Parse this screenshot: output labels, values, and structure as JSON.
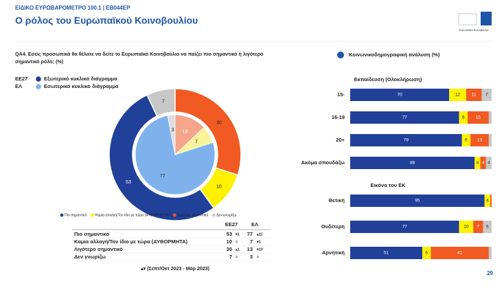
{
  "header": {
    "kicker": "ΕΙΔΙΚΟ ΕΥΡΩΒΑΡΟΜΕΤΡΟ 100.1 | EB044EP",
    "title": "Ο ρόλος του Ευρωπαϊκού Κοινοβουλίου",
    "logo_text": "Ευρωπαϊκό Κοινοβούλιο",
    "page_number": "29"
  },
  "chart_data": [
    {
      "type": "pie",
      "title": "QA4. Εσείς προσωπικά θα θέλατε να δείτε το Ευρωπαϊκό Κοινοβούλιο να παίζει πιο σημαντικό ή λιγότερο σημαντικό ρόλο; (%)",
      "categories": [
        "Πιο σημαντικό",
        "Καμία αλλαγή/Τον ίδιο με τώρα (ΑΥΘΟΡΜΗΤΑ)",
        "Λιγότερο σημαντικό",
        "Δεν γνωρίζω"
      ],
      "series": [
        {
          "name": "ΕΕ27",
          "description": "Εξωτερικό κυκλικό διάγραμμα",
          "values": [
            53,
            10,
            30,
            7
          ],
          "colors": [
            "#21409a",
            "#fff200",
            "#f15a22",
            "#c8c8c8"
          ]
        },
        {
          "name": "ΕΛ",
          "description": "Εσωτερικό κυκλικό διάγραμμα",
          "values": [
            77,
            7,
            13,
            3
          ],
          "colors": [
            "#7fb2ec",
            "#fbf39a",
            "#f5a58a",
            "#dedede"
          ]
        }
      ]
    },
    {
      "type": "bar",
      "orientation": "horizontal",
      "stacked": true,
      "title": "Κοινωνικοδημογραφική ανάλυση (%)",
      "subtitle": "Εκπαίδευση (Ολοκλήρωση)",
      "categories": [
        "15-",
        "16-19",
        "20+",
        "Ακόμα σπουδάζω"
      ],
      "xlim": [
        0,
        100
      ],
      "series": [
        {
          "color": "#21409a",
          "values": [
            70,
            77,
            79,
            88
          ]
        },
        {
          "color": "#fff200",
          "values": [
            12,
            6,
            6,
            4
          ]
        },
        {
          "color": "#f15a22",
          "values": [
            11,
            15,
            13,
            4
          ]
        },
        {
          "color": "#c8c8c8",
          "values": [
            7,
            2,
            2,
            4
          ],
          "value_labels": [
            "7",
            null,
            null,
            "4"
          ]
        }
      ]
    },
    {
      "type": "bar",
      "orientation": "horizontal",
      "stacked": true,
      "subtitle": "Εικόνα του ΕΚ",
      "categories": [
        "Θετική",
        "Ουδέτερη",
        "Αρνητική"
      ],
      "xlim": [
        0,
        100
      ],
      "series": [
        {
          "color": "#21409a",
          "values": [
            95,
            77,
            51
          ]
        },
        {
          "color": "#fff200",
          "values": [
            4,
            10,
            6
          ]
        },
        {
          "color": "#f15a22",
          "values": [
            1,
            7,
            41
          ],
          "value_labels": [
            null,
            "7",
            "41"
          ]
        },
        {
          "color": "#c8c8c8",
          "values": [
            0,
            6,
            2
          ],
          "value_labels": [
            null,
            "6",
            null
          ]
        }
      ]
    }
  ],
  "table": {
    "columns": [
      "ΕΕ27",
      "ΕΛ"
    ],
    "rows": [
      [
        "Πιο σημαντικό",
        53,
        "▾1",
        77,
        "▴11"
      ],
      [
        "Καμία αλλαγή/Τον ίδιο με τώρα (ΑΥΘΟΡΜΗΤΑ)",
        10,
        "=",
        7,
        "▾1"
      ],
      [
        "Λιγότερο σημαντικό",
        30,
        "▴1",
        13,
        "▾10"
      ],
      [
        "Δεν γνωρίζω",
        7,
        "=",
        3,
        "="
      ]
    ]
  },
  "footnote": "▴▾ (Σεπτ/Οκτ 2023 - Μάρ 2023)"
}
